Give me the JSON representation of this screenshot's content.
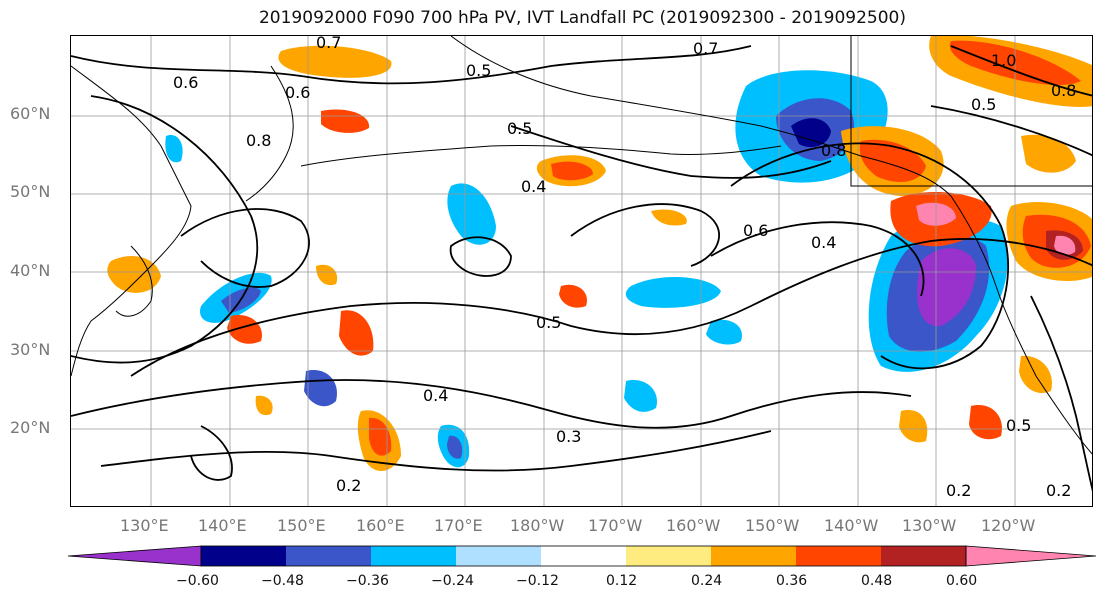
{
  "title": "2019092000 F090 700 hPa PV, IVT Landfall PC (2019092300 - 2019092500)",
  "colors": {
    "neg_060": "#9932CC",
    "neg_048": "#00008B",
    "neg_036": "#3A56C8",
    "neg_024": "#00BFFF",
    "neg_012": "#B0E0FF",
    "pos_012": "#FFEC80",
    "pos_024": "#FFA500",
    "pos_036": "#FF4500",
    "pos_048": "#B22222",
    "pos_060": "#FF85B0",
    "neutral": "#FFFFFF",
    "contour": "#000000",
    "coast": "#000000",
    "grid": "#999999"
  },
  "map": {
    "lat_labels": [
      "60°N",
      "50°N",
      "40°N",
      "30°N",
      "20°N"
    ],
    "lon_labels": [
      "130°E",
      "140°E",
      "150°E",
      "160°E",
      "170°E",
      "180°W",
      "170°W",
      "160°W",
      "150°W",
      "140°W",
      "130°W",
      "120°W"
    ],
    "contour_labels": [
      "0.7",
      "0.6",
      "0.5",
      "0.4",
      "0.3",
      "0.2",
      "0.8",
      "1.0"
    ]
  },
  "colorbar": {
    "ticks": [
      "−0.60",
      "−0.48",
      "−0.36",
      "−0.24",
      "−0.12",
      "0.12",
      "0.24",
      "0.36",
      "0.48",
      "0.60"
    ]
  }
}
